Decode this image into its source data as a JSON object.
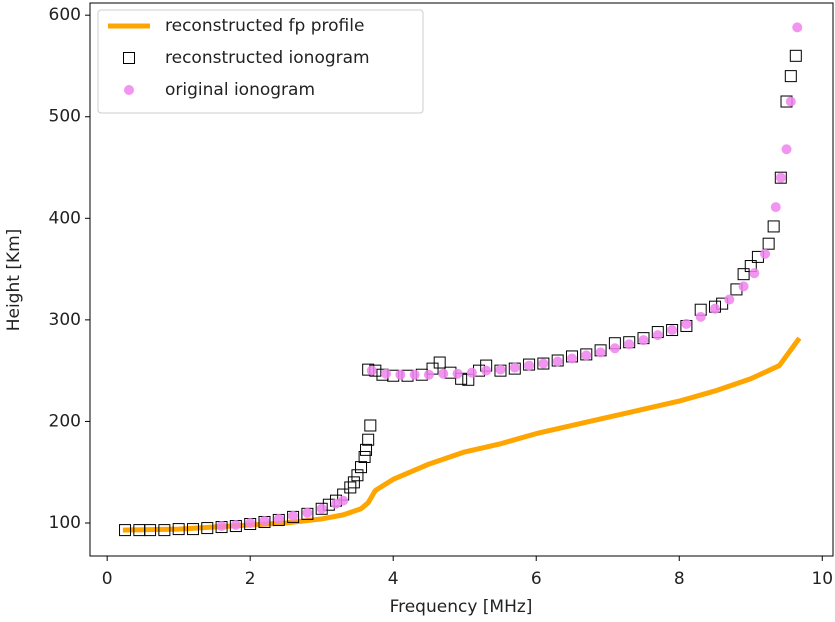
{
  "chart_data": {
    "type": "line-scatter",
    "xlabel": "Frequency [MHz]",
    "ylabel": "Height [Km]",
    "xlim": [
      -0.24,
      10.15
    ],
    "ylim": [
      67.5,
      612
    ],
    "xticks": [
      0,
      2,
      4,
      6,
      8,
      10
    ],
    "yticks": [
      100,
      200,
      300,
      400,
      500,
      600
    ],
    "grid": false,
    "legend": "upper left",
    "series": [
      {
        "name": "reconstructed fp profile",
        "color": "#ffa500",
        "mark": "line",
        "x": [
          0.22,
          1.0,
          1.5,
          2.0,
          2.5,
          3.0,
          3.3,
          3.55,
          3.65,
          3.75,
          4.0,
          4.5,
          5.0,
          5.5,
          6.0,
          6.5,
          7.0,
          7.5,
          8.0,
          8.5,
          9.0,
          9.4,
          9.68
        ],
        "values": [
          93,
          94,
          96,
          98,
          100,
          104,
          108,
          114,
          120,
          132,
          143,
          158,
          170,
          178,
          188,
          196,
          204,
          212,
          220,
          230,
          242,
          255,
          282
        ]
      },
      {
        "name": "reconstructed ionogram",
        "color": "#000000",
        "mark": "square-open",
        "x": [
          0.25,
          0.45,
          0.6,
          0.8,
          1.0,
          1.2,
          1.4,
          1.6,
          1.8,
          2.0,
          2.2,
          2.4,
          2.6,
          2.8,
          3.0,
          3.1,
          3.2,
          3.3,
          3.4,
          3.45,
          3.5,
          3.55,
          3.6,
          3.62,
          3.65,
          3.68,
          3.65,
          3.75,
          3.85,
          4.0,
          4.2,
          4.4,
          4.55,
          4.65,
          4.8,
          4.95,
          5.05,
          5.2,
          5.3,
          5.5,
          5.7,
          5.9,
          6.1,
          6.3,
          6.5,
          6.7,
          6.9,
          7.1,
          7.3,
          7.5,
          7.7,
          7.9,
          8.1,
          8.3,
          8.5,
          8.6,
          8.8,
          8.9,
          9.0,
          9.1,
          9.25,
          9.32,
          9.42,
          9.5,
          9.56,
          9.63
        ],
        "values": [
          93,
          93,
          93,
          93,
          94,
          94,
          95,
          96,
          97,
          99,
          101,
          103,
          106,
          109,
          114,
          118,
          122,
          128,
          135,
          140,
          147,
          155,
          165,
          172,
          182,
          196,
          251,
          250,
          246,
          245,
          245,
          246,
          252,
          258,
          248,
          242,
          241,
          250,
          255,
          250,
          252,
          256,
          257,
          260,
          264,
          266,
          270,
          277,
          278,
          282,
          288,
          290,
          294,
          310,
          313,
          316,
          330,
          345,
          353,
          362,
          375,
          392,
          440,
          515,
          540,
          560
        ]
      },
      {
        "name": "original ionogram",
        "color": "#ee82ee",
        "mark": "circle",
        "x": [
          1.6,
          1.8,
          2.0,
          2.2,
          2.4,
          2.6,
          2.8,
          3.0,
          3.2,
          3.3,
          3.7,
          3.9,
          4.1,
          4.3,
          4.5,
          4.7,
          4.9,
          5.1,
          5.3,
          5.5,
          5.7,
          5.9,
          6.1,
          6.3,
          6.5,
          6.7,
          6.9,
          7.1,
          7.3,
          7.5,
          7.7,
          7.9,
          8.1,
          8.3,
          8.5,
          8.7,
          8.9,
          9.05,
          9.2,
          9.35,
          9.42,
          9.5,
          9.56,
          9.65
        ],
        "values": [
          97,
          98,
          100,
          102,
          104,
          107,
          110,
          114,
          119,
          122,
          250,
          247,
          246,
          246,
          246,
          247,
          247,
          248,
          250,
          251,
          253,
          255,
          257,
          259,
          262,
          265,
          268,
          272,
          276,
          280,
          285,
          290,
          296,
          303,
          311,
          320,
          333,
          346,
          365,
          411,
          440,
          468,
          515,
          588
        ]
      }
    ]
  }
}
